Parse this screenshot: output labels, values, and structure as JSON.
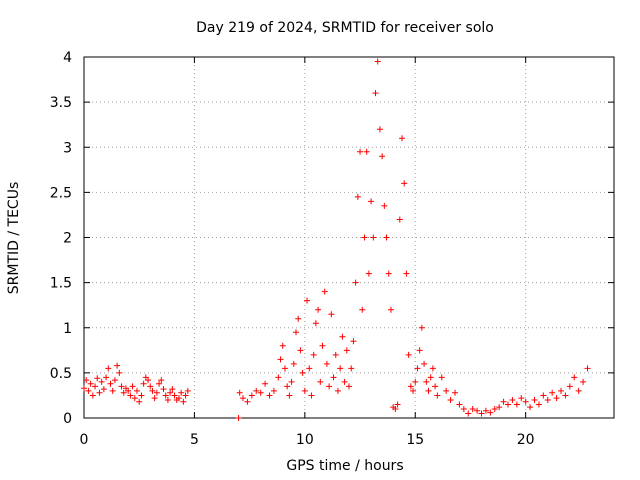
{
  "chart_data": {
    "type": "scatter",
    "title": "Day 219 of 2024, SRMTID for receiver solo",
    "xlabel": "GPS time / hours",
    "ylabel": "SRMTID / TECUs",
    "xlim": [
      0,
      24
    ],
    "ylim": [
      0,
      4
    ],
    "xticks": [
      0,
      5,
      10,
      15,
      20
    ],
    "yticks": [
      0,
      0.5,
      1,
      1.5,
      2,
      2.5,
      3,
      3.5,
      4
    ],
    "ytick_labels": [
      "0",
      "0.5",
      "1",
      "1.5",
      "2",
      "2.5",
      "3",
      "3.5",
      "4"
    ],
    "xtick_labels": [
      "0",
      "5",
      "10",
      "15",
      "20"
    ],
    "grid": true,
    "marker": "+",
    "color": "#ff0000",
    "series": [
      {
        "name": "SRMTID",
        "points": [
          [
            0.0,
            0.33
          ],
          [
            0.1,
            0.42
          ],
          [
            0.2,
            0.3
          ],
          [
            0.3,
            0.38
          ],
          [
            0.4,
            0.25
          ],
          [
            0.5,
            0.35
          ],
          [
            0.6,
            0.44
          ],
          [
            0.7,
            0.28
          ],
          [
            0.8,
            0.4
          ],
          [
            0.9,
            0.32
          ],
          [
            1.0,
            0.45
          ],
          [
            1.1,
            0.55
          ],
          [
            1.2,
            0.38
          ],
          [
            1.3,
            0.3
          ],
          [
            1.4,
            0.42
          ],
          [
            1.5,
            0.58
          ],
          [
            1.6,
            0.5
          ],
          [
            1.7,
            0.35
          ],
          [
            1.8,
            0.28
          ],
          [
            1.9,
            0.33
          ],
          [
            2.0,
            0.3
          ],
          [
            2.1,
            0.25
          ],
          [
            2.2,
            0.35
          ],
          [
            2.3,
            0.22
          ],
          [
            2.4,
            0.3
          ],
          [
            2.5,
            0.18
          ],
          [
            2.6,
            0.25
          ],
          [
            2.7,
            0.38
          ],
          [
            2.8,
            0.45
          ],
          [
            2.9,
            0.42
          ],
          [
            3.0,
            0.35
          ],
          [
            3.1,
            0.3
          ],
          [
            3.2,
            0.22
          ],
          [
            3.3,
            0.28
          ],
          [
            3.4,
            0.38
          ],
          [
            3.5,
            0.42
          ],
          [
            3.6,
            0.32
          ],
          [
            3.7,
            0.25
          ],
          [
            3.8,
            0.2
          ],
          [
            3.9,
            0.28
          ],
          [
            4.0,
            0.32
          ],
          [
            4.1,
            0.25
          ],
          [
            4.2,
            0.2
          ],
          [
            4.3,
            0.22
          ],
          [
            4.4,
            0.28
          ],
          [
            4.5,
            0.18
          ],
          [
            4.6,
            0.25
          ],
          [
            4.7,
            0.3
          ],
          [
            7.0,
            0.0
          ],
          [
            7.05,
            0.28
          ],
          [
            7.2,
            0.22
          ],
          [
            7.4,
            0.18
          ],
          [
            7.6,
            0.25
          ],
          [
            7.8,
            0.3
          ],
          [
            8.0,
            0.28
          ],
          [
            8.2,
            0.38
          ],
          [
            8.4,
            0.25
          ],
          [
            8.6,
            0.3
          ],
          [
            8.8,
            0.45
          ],
          [
            8.9,
            0.65
          ],
          [
            9.0,
            0.8
          ],
          [
            9.1,
            0.55
          ],
          [
            9.2,
            0.35
          ],
          [
            9.3,
            0.25
          ],
          [
            9.4,
            0.4
          ],
          [
            9.5,
            0.6
          ],
          [
            9.6,
            0.95
          ],
          [
            9.7,
            1.1
          ],
          [
            9.8,
            0.75
          ],
          [
            9.9,
            0.5
          ],
          [
            10.0,
            0.3
          ],
          [
            10.1,
            1.3
          ],
          [
            10.2,
            0.55
          ],
          [
            10.3,
            0.25
          ],
          [
            10.4,
            0.7
          ],
          [
            10.5,
            1.05
          ],
          [
            10.6,
            1.2
          ],
          [
            10.7,
            0.4
          ],
          [
            10.8,
            0.8
          ],
          [
            10.9,
            1.4
          ],
          [
            11.0,
            0.6
          ],
          [
            11.1,
            0.35
          ],
          [
            11.2,
            1.15
          ],
          [
            11.3,
            0.45
          ],
          [
            11.4,
            0.7
          ],
          [
            11.5,
            0.3
          ],
          [
            11.6,
            0.55
          ],
          [
            11.7,
            0.9
          ],
          [
            11.8,
            0.4
          ],
          [
            11.9,
            0.75
          ],
          [
            12.0,
            0.35
          ],
          [
            12.1,
            0.55
          ],
          [
            12.2,
            0.85
          ],
          [
            12.3,
            1.5
          ],
          [
            12.4,
            2.45
          ],
          [
            12.5,
            2.95
          ],
          [
            12.6,
            1.2
          ],
          [
            12.7,
            2.0
          ],
          [
            12.8,
            2.95
          ],
          [
            12.9,
            1.6
          ],
          [
            13.0,
            2.4
          ],
          [
            13.1,
            2.0
          ],
          [
            13.2,
            3.6
          ],
          [
            13.3,
            3.95
          ],
          [
            13.4,
            3.2
          ],
          [
            13.5,
            2.9
          ],
          [
            13.6,
            2.35
          ],
          [
            13.7,
            2.0
          ],
          [
            13.8,
            1.6
          ],
          [
            13.9,
            1.2
          ],
          [
            14.0,
            0.12
          ],
          [
            14.1,
            0.1
          ],
          [
            14.2,
            0.15
          ],
          [
            14.3,
            2.2
          ],
          [
            14.4,
            3.1
          ],
          [
            14.5,
            2.6
          ],
          [
            14.6,
            1.6
          ],
          [
            14.7,
            0.7
          ],
          [
            14.8,
            0.35
          ],
          [
            14.9,
            0.3
          ],
          [
            15.0,
            0.4
          ],
          [
            15.1,
            0.55
          ],
          [
            15.2,
            0.75
          ],
          [
            15.3,
            1.0
          ],
          [
            15.4,
            0.6
          ],
          [
            15.5,
            0.4
          ],
          [
            15.6,
            0.3
          ],
          [
            15.7,
            0.45
          ],
          [
            15.8,
            0.55
          ],
          [
            15.9,
            0.35
          ],
          [
            16.0,
            0.25
          ],
          [
            16.2,
            0.45
          ],
          [
            16.4,
            0.3
          ],
          [
            16.6,
            0.2
          ],
          [
            16.8,
            0.28
          ],
          [
            17.0,
            0.15
          ],
          [
            17.2,
            0.1
          ],
          [
            17.4,
            0.05
          ],
          [
            17.6,
            0.1
          ],
          [
            17.8,
            0.08
          ],
          [
            18.0,
            0.05
          ],
          [
            18.2,
            0.08
          ],
          [
            18.4,
            0.06
          ],
          [
            18.6,
            0.1
          ],
          [
            18.8,
            0.12
          ],
          [
            19.0,
            0.18
          ],
          [
            19.2,
            0.15
          ],
          [
            19.4,
            0.2
          ],
          [
            19.6,
            0.15
          ],
          [
            19.8,
            0.22
          ],
          [
            20.0,
            0.18
          ],
          [
            20.2,
            0.12
          ],
          [
            20.4,
            0.2
          ],
          [
            20.6,
            0.15
          ],
          [
            20.8,
            0.25
          ],
          [
            21.0,
            0.2
          ],
          [
            21.2,
            0.28
          ],
          [
            21.4,
            0.22
          ],
          [
            21.6,
            0.3
          ],
          [
            21.8,
            0.25
          ],
          [
            22.0,
            0.35
          ],
          [
            22.2,
            0.45
          ],
          [
            22.4,
            0.3
          ],
          [
            22.6,
            0.4
          ],
          [
            22.8,
            0.55
          ]
        ]
      }
    ]
  }
}
